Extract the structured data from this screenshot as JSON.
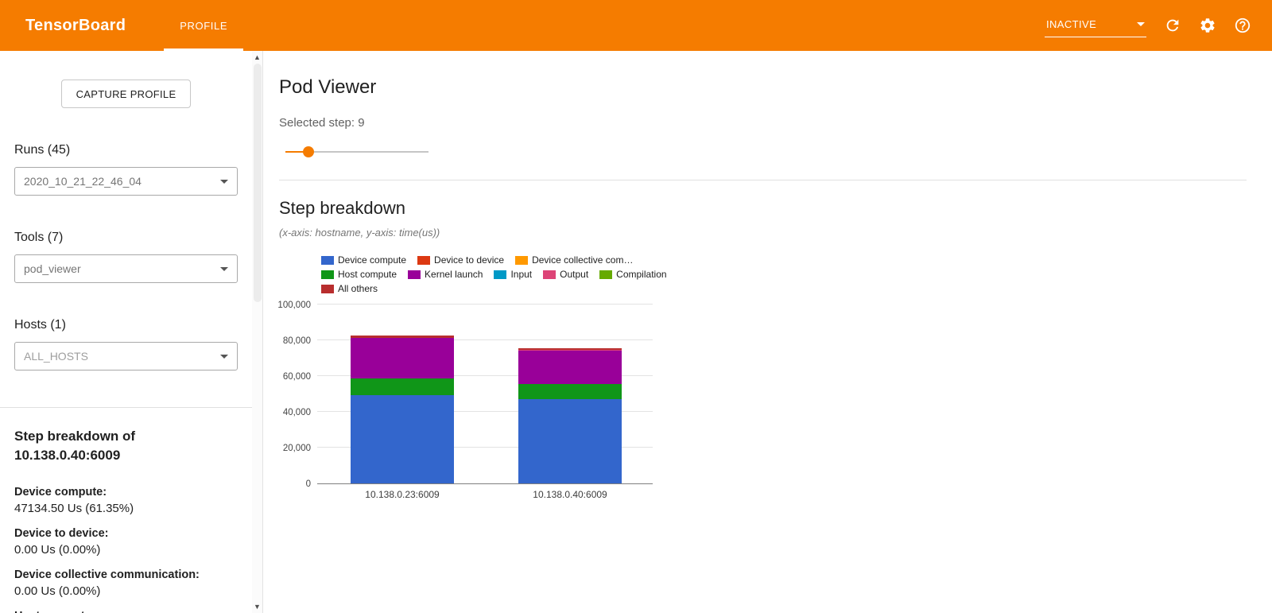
{
  "header": {
    "title": "TensorBoard",
    "tabs": [
      {
        "label": "PROFILE",
        "active": true
      }
    ],
    "status_dropdown": "INACTIVE",
    "icons": {
      "reload": "refresh-icon",
      "settings": "gear-icon",
      "help": "help-icon"
    },
    "accent_color": "#f57c00"
  },
  "sidebar": {
    "capture_button": "CAPTURE PROFILE",
    "runs_label": "Runs (45)",
    "runs_value": "2020_10_21_22_46_04",
    "tools_label": "Tools (7)",
    "tools_value": "pod_viewer",
    "hosts_label": "Hosts (1)",
    "hosts_value": "ALL_HOSTS",
    "breakdown_title": "Step breakdown of 10.138.0.40:6009",
    "stats": [
      {
        "label": "Device compute:",
        "value": "47134.50 Us (61.35%)"
      },
      {
        "label": "Device to device:",
        "value": "0.00 Us (0.00%)"
      },
      {
        "label": "Device collective communication:",
        "value": "0.00 Us (0.00%)"
      },
      {
        "label": "Host compute:",
        "value": ""
      }
    ]
  },
  "main": {
    "title": "Pod Viewer",
    "selected_step": "Selected step: 9",
    "slider_percent": 16,
    "section_title": "Step breakdown",
    "section_subtitle": "(x-axis: hostname, y-axis: time(us))"
  },
  "chart_data": {
    "type": "bar",
    "stacked": true,
    "title": "Step breakdown",
    "xlabel": "hostname",
    "ylabel": "time(us)",
    "ylim": [
      0,
      100000
    ],
    "yticks": [
      0,
      20000,
      40000,
      60000,
      80000,
      100000
    ],
    "categories": [
      "10.138.0.23:6009",
      "10.138.0.40:6009"
    ],
    "series": [
      {
        "name": "Device compute",
        "color": "#3366cc",
        "values": [
          49200,
          47134.5
        ]
      },
      {
        "name": "Device to device",
        "color": "#dc3912",
        "values": [
          0,
          0
        ]
      },
      {
        "name": "Device collective com…",
        "color": "#ff9900",
        "values": [
          0,
          0
        ]
      },
      {
        "name": "Host compute",
        "color": "#109618",
        "values": [
          9300,
          8400
        ]
      },
      {
        "name": "Kernel launch",
        "color": "#990099",
        "values": [
          22800,
          18800
        ]
      },
      {
        "name": "Input",
        "color": "#0099c6",
        "values": [
          0,
          0
        ]
      },
      {
        "name": "Output",
        "color": "#dd4477",
        "values": [
          0,
          500
        ]
      },
      {
        "name": "Compilation",
        "color": "#66aa00",
        "values": [
          0,
          0
        ]
      },
      {
        "name": "All others",
        "color": "#b82e2e",
        "values": [
          1200,
          700
        ]
      }
    ],
    "legend_position": "top"
  }
}
